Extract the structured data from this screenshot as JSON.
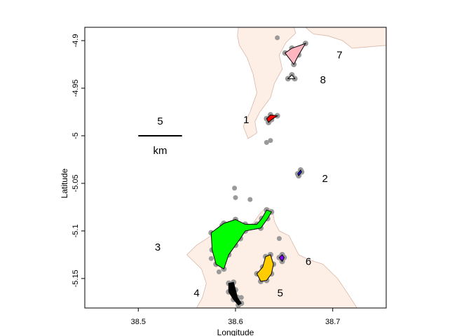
{
  "chart_data": {
    "type": "map",
    "xlabel": "Longitude",
    "ylabel": "Latitude",
    "xlim": [
      38.445,
      38.755
    ],
    "ylim": [
      -5.181,
      -4.886
    ],
    "x_ticks": [
      {
        "value": 38.5,
        "label": "38.5"
      },
      {
        "value": 38.6,
        "label": "38.6"
      },
      {
        "value": 38.7,
        "label": "38.7"
      }
    ],
    "y_ticks": [
      {
        "value": -4.9,
        "label": "-4.9"
      },
      {
        "value": -4.95,
        "label": "-4.95"
      },
      {
        "value": -5.0,
        "label": "-5"
      },
      {
        "value": -5.05,
        "label": "-5.05"
      },
      {
        "value": -5.1,
        "label": "-5.1"
      },
      {
        "value": -5.15,
        "label": "-5.15"
      }
    ],
    "scale_bar": {
      "length_text": "5",
      "unit_text": "km",
      "lon_start": 38.5,
      "lon_end": 38.545,
      "lat": -5.0
    },
    "colors": {
      "land": "#fdeee6",
      "land_border": "#d9b8a9",
      "buffer": "#9a9a9a",
      "frame": "#000000"
    },
    "land": [
      [
        [
          38.603,
          -4.886
        ],
        [
          38.66,
          -4.886
        ],
        [
          38.662,
          -4.892
        ],
        [
          38.652,
          -4.902
        ],
        [
          38.645,
          -4.915
        ],
        [
          38.648,
          -4.93
        ],
        [
          38.64,
          -4.945
        ],
        [
          38.636,
          -4.96
        ],
        [
          38.625,
          -4.975
        ],
        [
          38.62,
          -4.985
        ],
        [
          38.622,
          -4.997
        ],
        [
          38.613,
          -5.003
        ],
        [
          38.608,
          -4.99
        ],
        [
          38.615,
          -4.975
        ],
        [
          38.622,
          -4.955
        ],
        [
          38.618,
          -4.935
        ],
        [
          38.612,
          -4.918
        ],
        [
          38.604,
          -4.905
        ],
        [
          38.602,
          -4.895
        ]
      ],
      [
        [
          38.672,
          -4.886
        ],
        [
          38.755,
          -4.886
        ],
        [
          38.755,
          -4.905
        ],
        [
          38.72,
          -4.908
        ],
        [
          38.71,
          -4.9
        ],
        [
          38.695,
          -4.895
        ],
        [
          38.68,
          -4.893
        ]
      ],
      [
        [
          38.56,
          -5.181
        ],
        [
          38.566,
          -5.17
        ],
        [
          38.57,
          -5.155
        ],
        [
          38.565,
          -5.14
        ],
        [
          38.55,
          -5.125
        ],
        [
          38.56,
          -5.115
        ],
        [
          38.575,
          -5.105
        ],
        [
          38.59,
          -5.098
        ],
        [
          38.605,
          -5.1
        ],
        [
          38.618,
          -5.092
        ],
        [
          38.625,
          -5.082
        ],
        [
          38.632,
          -5.075
        ],
        [
          38.638,
          -5.078
        ],
        [
          38.64,
          -5.09
        ],
        [
          38.645,
          -5.1
        ],
        [
          38.655,
          -5.105
        ],
        [
          38.66,
          -5.115
        ],
        [
          38.665,
          -5.125
        ],
        [
          38.675,
          -5.13
        ],
        [
          38.69,
          -5.135
        ],
        [
          38.705,
          -5.15
        ],
        [
          38.715,
          -5.165
        ],
        [
          38.725,
          -5.181
        ]
      ]
    ],
    "regions": [
      {
        "label": "1",
        "color": "#ff0000",
        "label_pos": [
          38.611,
          -4.983
        ],
        "polygon": [
          [
            38.632,
            -4.982
          ],
          [
            38.636,
            -4.978
          ],
          [
            38.643,
            -4.979
          ],
          [
            38.637,
            -4.983
          ],
          [
            38.634,
            -4.986
          ]
        ]
      },
      {
        "label": "2",
        "color": "#1a1aff",
        "label_pos": [
          38.692,
          -5.045
        ],
        "polygon": [
          [
            38.664,
            -5.04
          ],
          [
            38.667,
            -5.036
          ],
          [
            38.668,
            -5.038
          ],
          [
            38.665,
            -5.042
          ]
        ]
      },
      {
        "label": "3",
        "color": "#00ff00",
        "label_pos": [
          38.52,
          -5.117
        ],
        "polygon": [
          [
            38.575,
            -5.102
          ],
          [
            38.588,
            -5.092
          ],
          [
            38.6,
            -5.088
          ],
          [
            38.61,
            -5.093
          ],
          [
            38.622,
            -5.093
          ],
          [
            38.627,
            -5.087
          ],
          [
            38.632,
            -5.078
          ],
          [
            38.637,
            -5.08
          ],
          [
            38.633,
            -5.087
          ],
          [
            38.626,
            -5.097
          ],
          [
            38.61,
            -5.1
          ],
          [
            38.605,
            -5.108
          ],
          [
            38.6,
            -5.115
          ],
          [
            38.593,
            -5.125
          ],
          [
            38.588,
            -5.14
          ],
          [
            38.58,
            -5.135
          ],
          [
            38.576,
            -5.12
          ]
        ]
      },
      {
        "label": "4",
        "color": "#000000",
        "label_pos": [
          38.56,
          -5.165
        ],
        "polygon": [
          [
            38.593,
            -5.155
          ],
          [
            38.598,
            -5.154
          ],
          [
            38.6,
            -5.162
          ],
          [
            38.602,
            -5.17
          ],
          [
            38.606,
            -5.176
          ],
          [
            38.603,
            -5.178
          ],
          [
            38.598,
            -5.172
          ],
          [
            38.593,
            -5.164
          ]
        ]
      },
      {
        "label": "5",
        "color": "#ffcc00",
        "label_pos": [
          38.646,
          -5.165
        ],
        "polygon": [
          [
            38.631,
            -5.127
          ],
          [
            38.636,
            -5.125
          ],
          [
            38.639,
            -5.135
          ],
          [
            38.637,
            -5.145
          ],
          [
            38.632,
            -5.152
          ],
          [
            38.626,
            -5.153
          ],
          [
            38.622,
            -5.145
          ],
          [
            38.628,
            -5.138
          ]
        ]
      },
      {
        "label": "6",
        "color": "#8800ff",
        "label_pos": [
          38.675,
          -5.132
        ],
        "polygon": [
          [
            38.645,
            -5.128
          ],
          [
            38.648,
            -5.125
          ],
          [
            38.65,
            -5.128
          ],
          [
            38.648,
            -5.132
          ]
        ]
      },
      {
        "label": "7",
        "color": "#ffb6c1",
        "label_pos": [
          38.707,
          -4.915
        ],
        "polygon": [
          [
            38.651,
            -4.913
          ],
          [
            38.658,
            -4.908
          ],
          [
            38.672,
            -4.903
          ],
          [
            38.665,
            -4.915
          ],
          [
            38.66,
            -4.925
          ]
        ]
      },
      {
        "label": "8",
        "color": "#ffffff",
        "label_pos": [
          38.69,
          -4.941
        ],
        "polygon": [
          [
            38.654,
            -4.94
          ],
          [
            38.658,
            -4.936
          ],
          [
            38.661,
            -4.94
          ]
        ]
      }
    ],
    "extra_points": [
      [
        38.643,
        -4.897
      ],
      [
        38.636,
        -5.005
      ],
      [
        38.632,
        -5.007
      ],
      [
        38.599,
        -5.055
      ],
      [
        38.6,
        -5.065
      ],
      [
        38.615,
        -5.067
      ],
      [
        38.645,
        -5.108
      ],
      [
        38.586,
        -5.094
      ],
      [
        38.575,
        -5.129
      ],
      [
        38.583,
        -5.143
      ],
      [
        38.606,
        -5.17
      ]
    ]
  }
}
